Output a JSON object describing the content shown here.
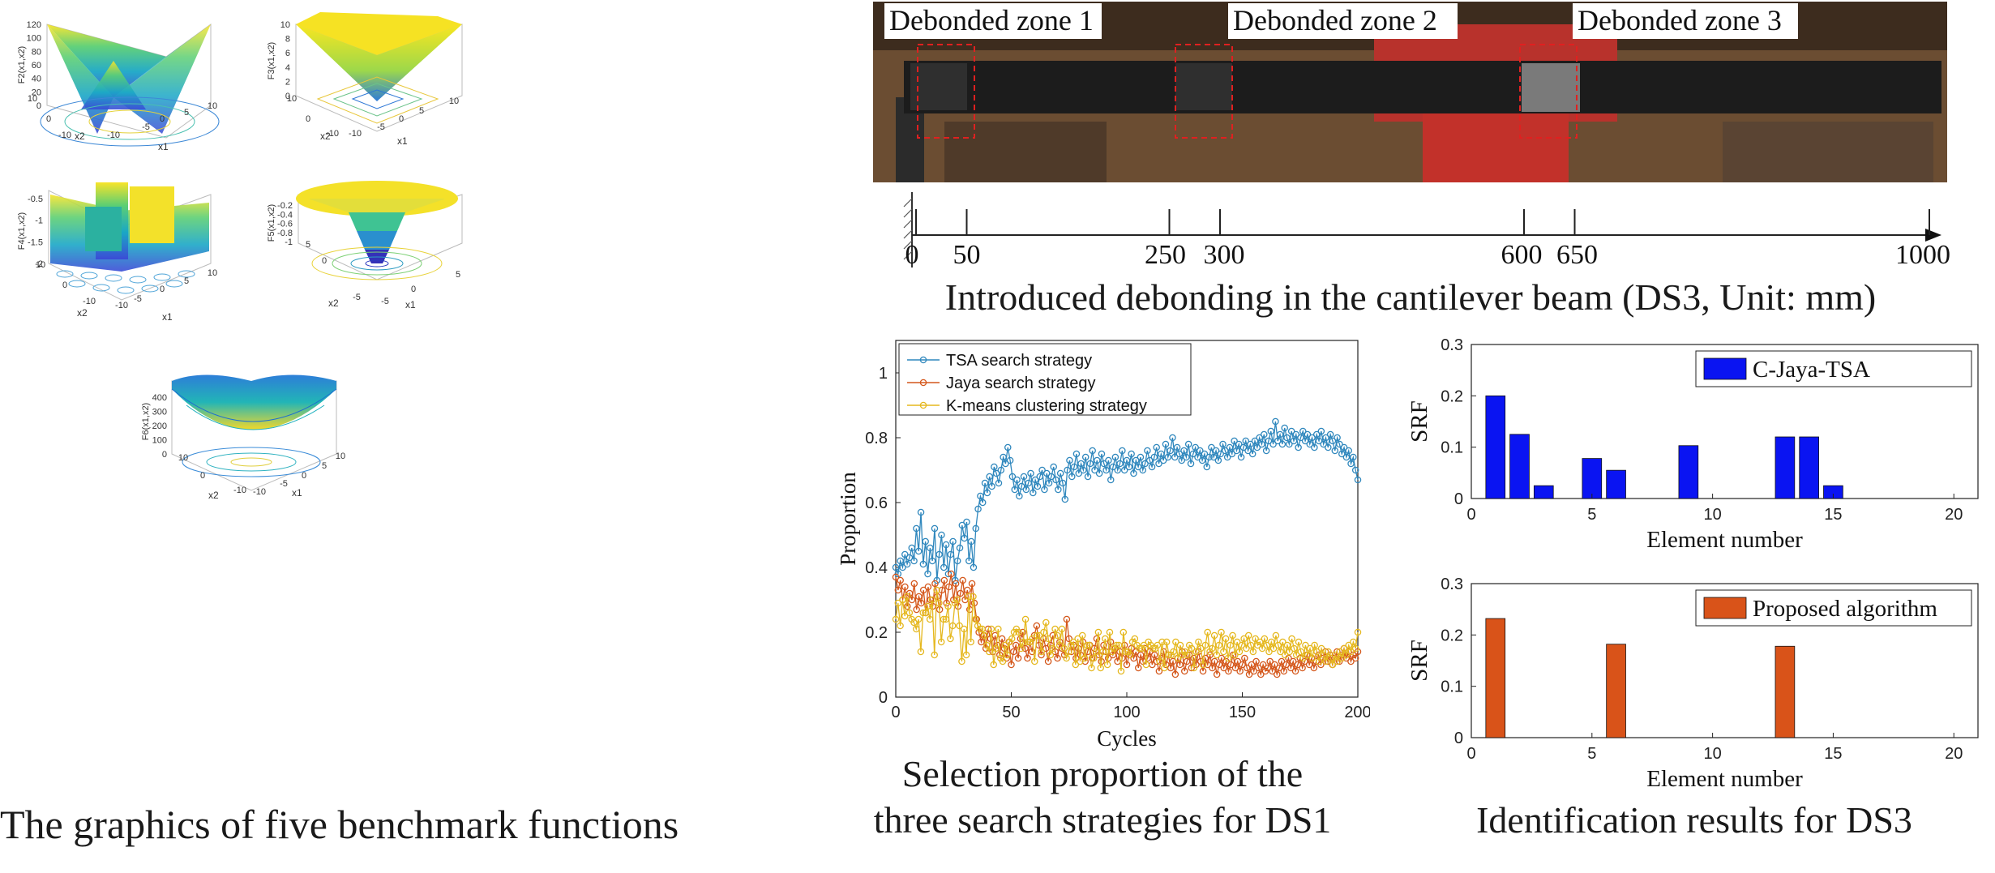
{
  "captions": {
    "benchmark": "The graphics of five benchmark functions",
    "beam": "Introduced debonding in the cantilever beam (DS3, Unit: mm)",
    "proportion_line1": "Selection proportion of the",
    "proportion_line2": "three search strategies for DS1",
    "identification": "Identification results for DS3"
  },
  "benchmark_plots": [
    {
      "zlabel": "F2(x1,x2)",
      "zticks": [
        "120",
        "100",
        "80",
        "60",
        "40",
        "20",
        "0"
      ],
      "xlabel": "x1",
      "ylabel": "x2",
      "xticks": [
        "-10",
        "-5",
        "0",
        "5",
        "10"
      ],
      "yticks": [
        "10",
        "0",
        "-10"
      ]
    },
    {
      "zlabel": "F3(x1,x2)",
      "zticks": [
        "10",
        "8",
        "6",
        "4",
        "2",
        "0"
      ],
      "xlabel": "x1",
      "ylabel": "x2",
      "xticks": [
        "-10",
        "-5",
        "0",
        "5",
        "10"
      ],
      "yticks": [
        "10",
        "0",
        "-10"
      ]
    },
    {
      "zlabel": "F4(x1,x2)",
      "zticks": [
        "-0.5",
        "-1",
        "-1.5",
        "-2"
      ],
      "xlabel": "x1",
      "ylabel": "x2",
      "xticks": [
        "-10",
        "-5",
        "0",
        "5",
        "10"
      ],
      "yticks": [
        "10",
        "0",
        "-10"
      ]
    },
    {
      "zlabel": "F5(x1,x2)",
      "zticks": [
        "-0.2",
        "-0.4",
        "-0.6",
        "-0.8",
        "-1"
      ],
      "xlabel": "x1",
      "ylabel": "x2",
      "xticks": [
        "-5",
        "0",
        "5"
      ],
      "yticks": [
        "5",
        "0",
        "-5"
      ]
    },
    {
      "zlabel": "F6(x1,x2)",
      "zticks": [
        "400",
        "300",
        "200",
        "100",
        "0"
      ],
      "xlabel": "x1",
      "ylabel": "x2",
      "xticks": [
        "-10",
        "-5",
        "0",
        "5",
        "10"
      ],
      "yticks": [
        "10",
        "0",
        "-10"
      ]
    }
  ],
  "beam": {
    "zones": [
      "Debonded zone 1",
      "Debonded zone 2",
      "Debonded zone 3"
    ],
    "axis_ticks": [
      0,
      50,
      250,
      300,
      600,
      650,
      1000
    ]
  },
  "chart_data": [
    {
      "type": "line",
      "xlabel": "Cycles",
      "ylabel": "Proportion",
      "xlim": [
        0,
        200
      ],
      "ylim": [
        0,
        1.1
      ],
      "xticks": [
        0,
        50,
        100,
        150,
        200
      ],
      "yticks": [
        0,
        0.2,
        0.4,
        0.6,
        0.8,
        1
      ],
      "legend_position": "top-left",
      "series": [
        {
          "name": "TSA search strategy",
          "color": "#2f87bd",
          "values": [
            0.4,
            0.38,
            0.42,
            0.4,
            0.44,
            0.41,
            0.43,
            0.46,
            0.42,
            0.52,
            0.45,
            0.57,
            0.41,
            0.48,
            0.38,
            0.46,
            0.42,
            0.52,
            0.36,
            0.44,
            0.5,
            0.4,
            0.47,
            0.38,
            0.44,
            0.48,
            0.36,
            0.42,
            0.46,
            0.53,
            0.49,
            0.54,
            0.42,
            0.48,
            0.4,
            0.52,
            0.58,
            0.62,
            0.6,
            0.66,
            0.63,
            0.68,
            0.65,
            0.71,
            0.69,
            0.66,
            0.7,
            0.74,
            0.72,
            0.77,
            0.73,
            0.68,
            0.64,
            0.67,
            0.62,
            0.65,
            0.68,
            0.64,
            0.66,
            0.69,
            0.63,
            0.67,
            0.65,
            0.68,
            0.7,
            0.64,
            0.69,
            0.66,
            0.68,
            0.71,
            0.67,
            0.64,
            0.69,
            0.66,
            0.61,
            0.7,
            0.73,
            0.68,
            0.71,
            0.75,
            0.69,
            0.72,
            0.7,
            0.74,
            0.68,
            0.72,
            0.76,
            0.7,
            0.73,
            0.69,
            0.75,
            0.72,
            0.7,
            0.73,
            0.67,
            0.71,
            0.74,
            0.7,
            0.72,
            0.76,
            0.7,
            0.73,
            0.71,
            0.75,
            0.69,
            0.73,
            0.71,
            0.74,
            0.7,
            0.72,
            0.76,
            0.73,
            0.71,
            0.74,
            0.77,
            0.72,
            0.75,
            0.73,
            0.78,
            0.74,
            0.76,
            0.8,
            0.74,
            0.77,
            0.75,
            0.73,
            0.76,
            0.74,
            0.78,
            0.72,
            0.75,
            0.77,
            0.74,
            0.76,
            0.73,
            0.75,
            0.71,
            0.74,
            0.77,
            0.74,
            0.76,
            0.73,
            0.75,
            0.78,
            0.76,
            0.74,
            0.77,
            0.75,
            0.79,
            0.76,
            0.78,
            0.74,
            0.77,
            0.79,
            0.76,
            0.78,
            0.75,
            0.79,
            0.77,
            0.8,
            0.78,
            0.81,
            0.76,
            0.79,
            0.82,
            0.78,
            0.85,
            0.79,
            0.81,
            0.78,
            0.83,
            0.8,
            0.78,
            0.82,
            0.79,
            0.81,
            0.77,
            0.8,
            0.82,
            0.79,
            0.81,
            0.78,
            0.8,
            0.77,
            0.81,
            0.79,
            0.82,
            0.78,
            0.8,
            0.77,
            0.81,
            0.79,
            0.76,
            0.8,
            0.78,
            0.75,
            0.77,
            0.74,
            0.76,
            0.72,
            0.74,
            0.7,
            0.67
          ]
        },
        {
          "name": "Jaya search strategy",
          "color": "#d4571b",
          "values": [
            0.37,
            0.33,
            0.36,
            0.3,
            0.34,
            0.28,
            0.32,
            0.3,
            0.35,
            0.27,
            0.31,
            0.29,
            0.33,
            0.26,
            0.34,
            0.3,
            0.28,
            0.35,
            0.31,
            0.27,
            0.33,
            0.36,
            0.29,
            0.34,
            0.38,
            0.3,
            0.35,
            0.28,
            0.32,
            0.36,
            0.3,
            0.33,
            0.27,
            0.35,
            0.29,
            0.24,
            0.2,
            0.17,
            0.19,
            0.15,
            0.21,
            0.18,
            0.14,
            0.19,
            0.16,
            0.13,
            0.18,
            0.15,
            0.12,
            0.17,
            0.1,
            0.14,
            0.16,
            0.12,
            0.18,
            0.2,
            0.15,
            0.12,
            0.17,
            0.14,
            0.19,
            0.22,
            0.16,
            0.13,
            0.18,
            0.15,
            0.11,
            0.16,
            0.19,
            0.14,
            0.12,
            0.17,
            0.15,
            0.13,
            0.24,
            0.18,
            0.14,
            0.16,
            0.12,
            0.15,
            0.13,
            0.17,
            0.11,
            0.14,
            0.16,
            0.12,
            0.15,
            0.18,
            0.13,
            0.11,
            0.16,
            0.14,
            0.12,
            0.17,
            0.13,
            0.15,
            0.11,
            0.14,
            0.12,
            0.16,
            0.1,
            0.13,
            0.15,
            0.12,
            0.14,
            0.09,
            0.13,
            0.11,
            0.15,
            0.12,
            0.14,
            0.1,
            0.13,
            0.11,
            0.08,
            0.12,
            0.14,
            0.1,
            0.13,
            0.09,
            0.11,
            0.07,
            0.12,
            0.1,
            0.14,
            0.08,
            0.11,
            0.13,
            0.09,
            0.12,
            0.1,
            0.14,
            0.11,
            0.08,
            0.12,
            0.1,
            0.13,
            0.09,
            0.11,
            0.07,
            0.1,
            0.12,
            0.09,
            0.11,
            0.08,
            0.1,
            0.13,
            0.09,
            0.11,
            0.08,
            0.1,
            0.12,
            0.09,
            0.07,
            0.1,
            0.08,
            0.11,
            0.09,
            0.07,
            0.1,
            0.08,
            0.09,
            0.11,
            0.08,
            0.1,
            0.07,
            0.09,
            0.11,
            0.08,
            0.1,
            0.12,
            0.09,
            0.11,
            0.08,
            0.1,
            0.12,
            0.09,
            0.11,
            0.13,
            0.1,
            0.12,
            0.09,
            0.11,
            0.13,
            0.1,
            0.12,
            0.14,
            0.11,
            0.13,
            0.1,
            0.12,
            0.14,
            0.11,
            0.13,
            0.15,
            0.12,
            0.14,
            0.11,
            0.13,
            0.12,
            0.14
          ]
        },
        {
          "name": "K-means clustering strategy",
          "color": "#e5b81f",
          "values": [
            0.24,
            0.29,
            0.22,
            0.3,
            0.25,
            0.31,
            0.26,
            0.24,
            0.23,
            0.21,
            0.24,
            0.14,
            0.26,
            0.26,
            0.28,
            0.24,
            0.3,
            0.13,
            0.33,
            0.29,
            0.17,
            0.24,
            0.24,
            0.28,
            0.18,
            0.22,
            0.29,
            0.3,
            0.22,
            0.11,
            0.21,
            0.13,
            0.31,
            0.17,
            0.31,
            0.24,
            0.22,
            0.21,
            0.21,
            0.19,
            0.16,
            0.14,
            0.21,
            0.1,
            0.15,
            0.21,
            0.12,
            0.11,
            0.16,
            0.13,
            0.17,
            0.18,
            0.2,
            0.21,
            0.2,
            0.15,
            0.17,
            0.24,
            0.17,
            0.17,
            0.18,
            0.11,
            0.19,
            0.19,
            0.14,
            0.2,
            0.23,
            0.18,
            0.13,
            0.15,
            0.21,
            0.19,
            0.16,
            0.21,
            0.15,
            0.12,
            0.14,
            0.16,
            0.17,
            0.1,
            0.18,
            0.11,
            0.19,
            0.12,
            0.16,
            0.16,
            0.09,
            0.12,
            0.14,
            0.2,
            0.09,
            0.14,
            0.18,
            0.1,
            0.2,
            0.14,
            0.15,
            0.16,
            0.16,
            0.08,
            0.2,
            0.14,
            0.14,
            0.13,
            0.17,
            0.18,
            0.16,
            0.15,
            0.15,
            0.16,
            0.1,
            0.17,
            0.16,
            0.15,
            0.15,
            0.16,
            0.11,
            0.17,
            0.09,
            0.17,
            0.13,
            0.13,
            0.14,
            0.17,
            0.12,
            0.16,
            0.13,
            0.14,
            0.13,
            0.16,
            0.15,
            0.09,
            0.14,
            0.17,
            0.15,
            0.1,
            0.16,
            0.2,
            0.14,
            0.15,
            0.19,
            0.13,
            0.16,
            0.2,
            0.14,
            0.18,
            0.12,
            0.16,
            0.19,
            0.13,
            0.17,
            0.14,
            0.16,
            0.18,
            0.15,
            0.19,
            0.16,
            0.14,
            0.18,
            0.16,
            0.17,
            0.15,
            0.18,
            0.16,
            0.14,
            0.17,
            0.15,
            0.19,
            0.16,
            0.14,
            0.17,
            0.13,
            0.16,
            0.14,
            0.18,
            0.15,
            0.13,
            0.17,
            0.14,
            0.12,
            0.16,
            0.13,
            0.15,
            0.12,
            0.16,
            0.14,
            0.11,
            0.15,
            0.13,
            0.11,
            0.14,
            0.12,
            0.1,
            0.13,
            0.11,
            0.14,
            0.12,
            0.15,
            0.13,
            0.16,
            0.14,
            0.17,
            0.15,
            0.2
          ]
        }
      ]
    },
    {
      "type": "bar",
      "xlabel": "Element number",
      "ylabel": "SRF",
      "xlim": [
        0,
        21
      ],
      "ylim": [
        0,
        0.3
      ],
      "xticks": [
        0,
        5,
        10,
        15,
        20
      ],
      "yticks": [
        0,
        0.1,
        0.2,
        0.3
      ],
      "legend_position": "top-right",
      "series": [
        {
          "name": "C-Jaya-TSA",
          "color": "#0a14f2",
          "points": [
            [
              1,
              0.2
            ],
            [
              2,
              0.125
            ],
            [
              3,
              0.025
            ],
            [
              5,
              0.078
            ],
            [
              6,
              0.055
            ],
            [
              9,
              0.103
            ],
            [
              13,
              0.12
            ],
            [
              14,
              0.12
            ],
            [
              15,
              0.025
            ]
          ]
        }
      ]
    },
    {
      "type": "bar",
      "xlabel": "Element number",
      "ylabel": "SRF",
      "xlim": [
        0,
        21
      ],
      "ylim": [
        0,
        0.3
      ],
      "xticks": [
        0,
        5,
        10,
        15,
        20
      ],
      "yticks": [
        0,
        0.1,
        0.2,
        0.3
      ],
      "legend_position": "top-right",
      "series": [
        {
          "name": "Proposed algorithm",
          "color": "#d95319",
          "points": [
            [
              1,
              0.232
            ],
            [
              6,
              0.182
            ],
            [
              13,
              0.178
            ]
          ]
        }
      ]
    }
  ]
}
